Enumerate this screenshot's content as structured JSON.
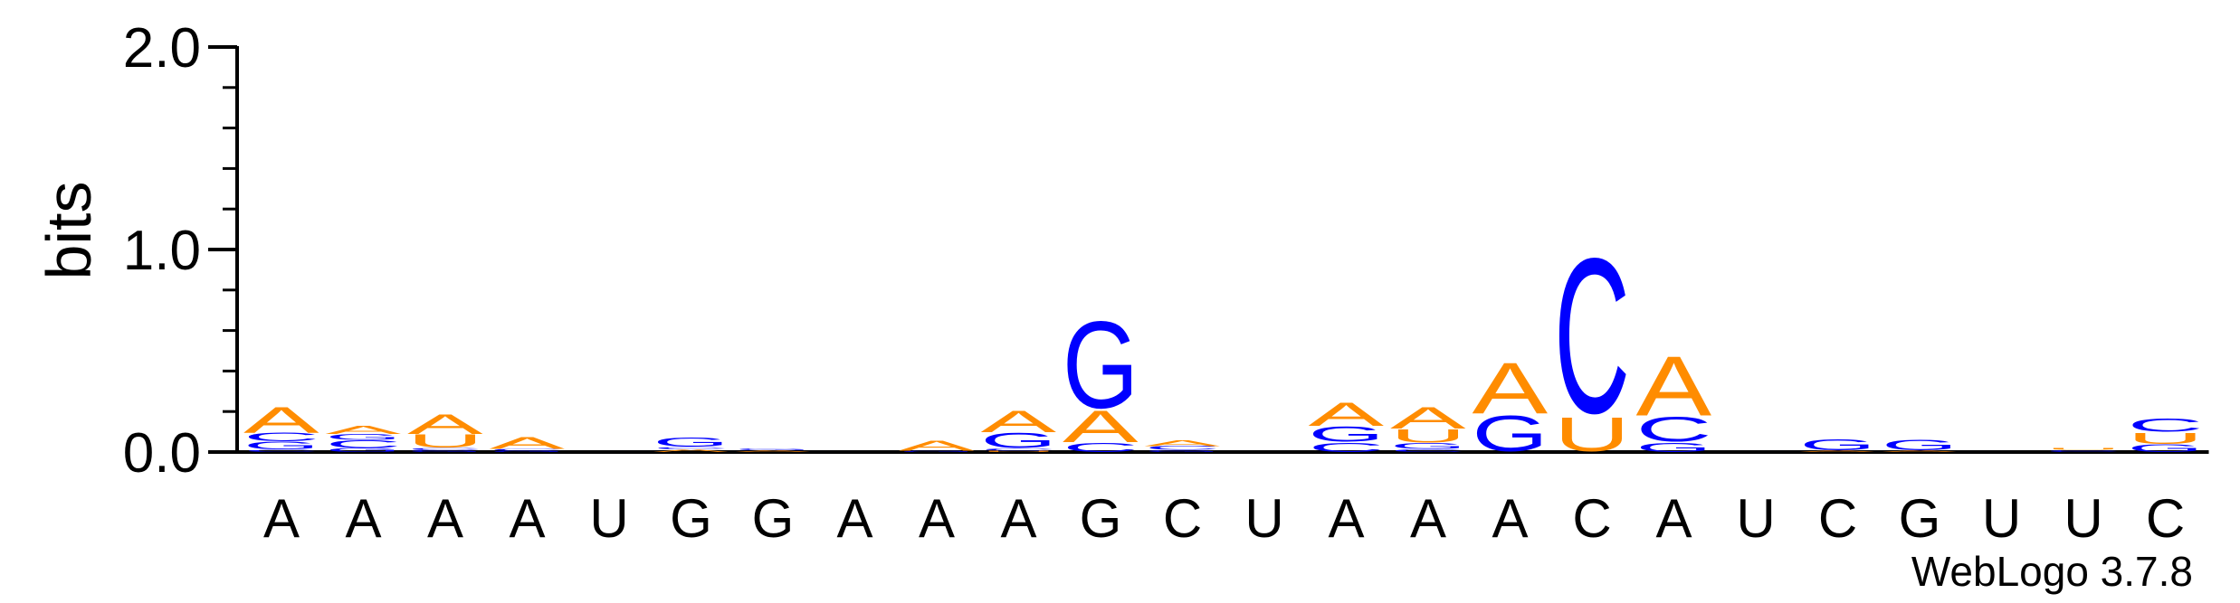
{
  "chart_data": {
    "type": "sequence-logo",
    "ylabel": "bits",
    "ylim": [
      0,
      2
    ],
    "yticks": [
      "0.0",
      "1.0",
      "2.0"
    ],
    "colors": {
      "A": "#ff8c00",
      "U": "#ff8c00",
      "G": "#0000ff",
      "C": "#0000ff"
    },
    "positions": [
      {
        "label": "A",
        "stack": [
          [
            "C",
            0.012
          ],
          [
            "G",
            0.04
          ],
          [
            "C",
            0.045
          ],
          [
            "A",
            0.13
          ]
        ]
      },
      {
        "label": "A",
        "stack": [
          [
            "G",
            0.02
          ],
          [
            "C",
            0.04
          ],
          [
            "G",
            0.03
          ],
          [
            "A",
            0.04
          ]
        ]
      },
      {
        "label": "A",
        "stack": [
          [
            "G",
            0.008
          ],
          [
            "C",
            0.012
          ],
          [
            "U",
            0.07
          ],
          [
            "A",
            0.1
          ]
        ]
      },
      {
        "label": "A",
        "stack": [
          [
            "G",
            0.006
          ],
          [
            "C",
            0.01
          ],
          [
            "A",
            0.06
          ]
        ]
      },
      {
        "label": "U",
        "stack": []
      },
      {
        "label": "G",
        "stack": [
          [
            "A",
            0.014
          ],
          [
            "C",
            0.012
          ],
          [
            "G",
            0.05
          ]
        ]
      },
      {
        "label": "G",
        "stack": [
          [
            "A",
            0.008
          ],
          [
            "G",
            0.008
          ]
        ]
      },
      {
        "label": "A",
        "stack": []
      },
      {
        "label": "A",
        "stack": [
          [
            "G",
            0.006
          ],
          [
            "A",
            0.05
          ]
        ]
      },
      {
        "label": "A",
        "stack": [
          [
            "U",
            0.006
          ],
          [
            "C",
            0.012
          ],
          [
            "G",
            0.08
          ],
          [
            "A",
            0.11
          ]
        ]
      },
      {
        "label": "G",
        "stack": [
          [
            "C",
            0.05
          ],
          [
            "A",
            0.16
          ],
          [
            "G",
            0.46
          ]
        ]
      },
      {
        "label": "C",
        "stack": [
          [
            "G",
            0.01
          ],
          [
            "C",
            0.02
          ],
          [
            "A",
            0.03
          ]
        ]
      },
      {
        "label": "U",
        "stack": []
      },
      {
        "label": "A",
        "stack": [
          [
            "C",
            0.05
          ],
          [
            "G",
            0.08
          ],
          [
            "A",
            0.12
          ]
        ]
      },
      {
        "label": "A",
        "stack": [
          [
            "C",
            0.015
          ],
          [
            "G",
            0.03
          ],
          [
            "U",
            0.07
          ],
          [
            "A",
            0.11
          ]
        ]
      },
      {
        "label": "A",
        "stack": [
          [
            "G",
            0.19
          ],
          [
            "A",
            0.26
          ]
        ]
      },
      {
        "label": "C",
        "stack": [
          [
            "U",
            0.18
          ],
          [
            "C",
            0.82
          ]
        ]
      },
      {
        "label": "A",
        "stack": [
          [
            "G",
            0.05
          ],
          [
            "C",
            0.13
          ],
          [
            "A",
            0.3
          ]
        ]
      },
      {
        "label": "U",
        "stack": []
      },
      {
        "label": "C",
        "stack": [
          [
            "A",
            0.008
          ],
          [
            "G",
            0.06
          ]
        ]
      },
      {
        "label": "G",
        "stack": [
          [
            "A",
            0.008
          ],
          [
            "G",
            0.055
          ]
        ]
      },
      {
        "label": "U",
        "stack": []
      },
      {
        "label": "U",
        "stack": [
          [
            "C",
            0.01
          ],
          [
            "U",
            0.008
          ]
        ]
      },
      {
        "label": "C",
        "stack": [
          [
            "G",
            0.04
          ],
          [
            "U",
            0.06
          ],
          [
            "C",
            0.07
          ]
        ]
      }
    ]
  },
  "credit": "WebLogo 3.7.8"
}
